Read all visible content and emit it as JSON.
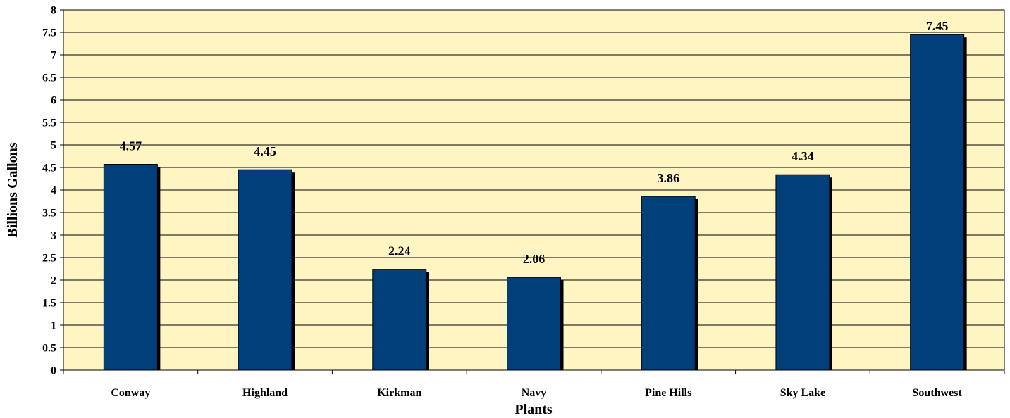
{
  "chart_data": {
    "type": "bar",
    "categories": [
      "Conway",
      "Highland",
      "Kirkman",
      "Navy",
      "Pine Hills",
      "Sky Lake",
      "Southwest"
    ],
    "values": [
      4.57,
      4.45,
      2.24,
      2.06,
      3.86,
      4.34,
      7.45
    ],
    "data_labels": [
      "4.57",
      "4.45",
      "2.24",
      "2.06",
      "3.86",
      "4.34",
      "7.45"
    ],
    "title": "",
    "xlabel": "Plants",
    "ylabel": "Billions Gallons",
    "ylim": [
      0,
      8
    ],
    "yticks": [
      "0",
      "0.5",
      "1",
      "1.5",
      "2",
      "2.5",
      "3",
      "3.5",
      "4",
      "4.5",
      "5",
      "5.5",
      "6",
      "6.5",
      "7",
      "7.5",
      "8"
    ],
    "grid": true,
    "legend": "none",
    "colors": {
      "plot_background": "#FFF5C2",
      "bar": "#003F7A",
      "bar_shadow": "#000000",
      "gridline": "#000000"
    }
  }
}
